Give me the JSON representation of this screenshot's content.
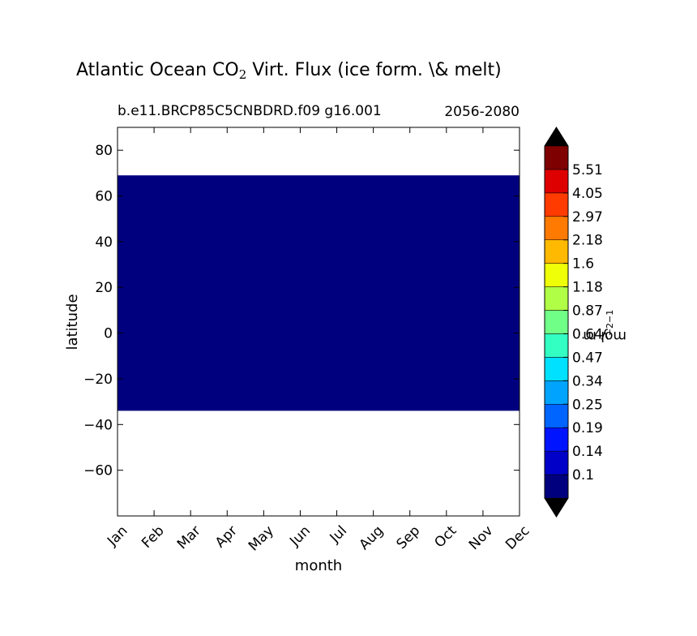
{
  "chart_data": {
    "type": "heatmap",
    "title": "Atlantic Ocean CO",
    "title_sub": "2",
    "title_rest": " Virt. Flux (ice form. \\& melt)",
    "subtitle_left": "b.e11.BRCP85C5CNBDRD.f09 g16.001",
    "subtitle_right": "2056-2080",
    "xlabel": "month",
    "ylabel": "latitude",
    "x_categories": [
      "Jan",
      "Feb",
      "Mar",
      "Apr",
      "May",
      "Jun",
      "Jul",
      "Aug",
      "Sep",
      "Oct",
      "Nov",
      "Dec"
    ],
    "ylim": [
      -80,
      90
    ],
    "yticks": [
      80,
      60,
      40,
      20,
      0,
      -20,
      -40,
      -60
    ],
    "ytick_labels": [
      "80",
      "60",
      "40",
      "20",
      "0",
      "−20",
      "−40",
      "−60"
    ],
    "data_region": {
      "lat_min": -34,
      "lat_max": 69,
      "value_range": "<0.1",
      "color": "#00007f"
    },
    "colorbar": {
      "label": "mol m",
      "label_sup1": "−2",
      "label_mid": " y",
      "label_sup2": "−1",
      "levels": [
        "0.1",
        "0.14",
        "0.19",
        "0.25",
        "0.34",
        "0.47",
        "0.64",
        "0.87",
        "1.18",
        "1.6",
        "2.18",
        "2.97",
        "4.05",
        "5.51"
      ],
      "colors": [
        "#00007f",
        "#0000c8",
        "#0014ff",
        "#0064ff",
        "#00a4ff",
        "#00e0ff",
        "#33ffc3",
        "#70ff87",
        "#b0ff46",
        "#eeff08",
        "#ffb900",
        "#ff7a00",
        "#ff3b00",
        "#de0000",
        "#7f0000"
      ],
      "extend_low_color": "#000000",
      "extend_high_color": "#000000"
    }
  }
}
